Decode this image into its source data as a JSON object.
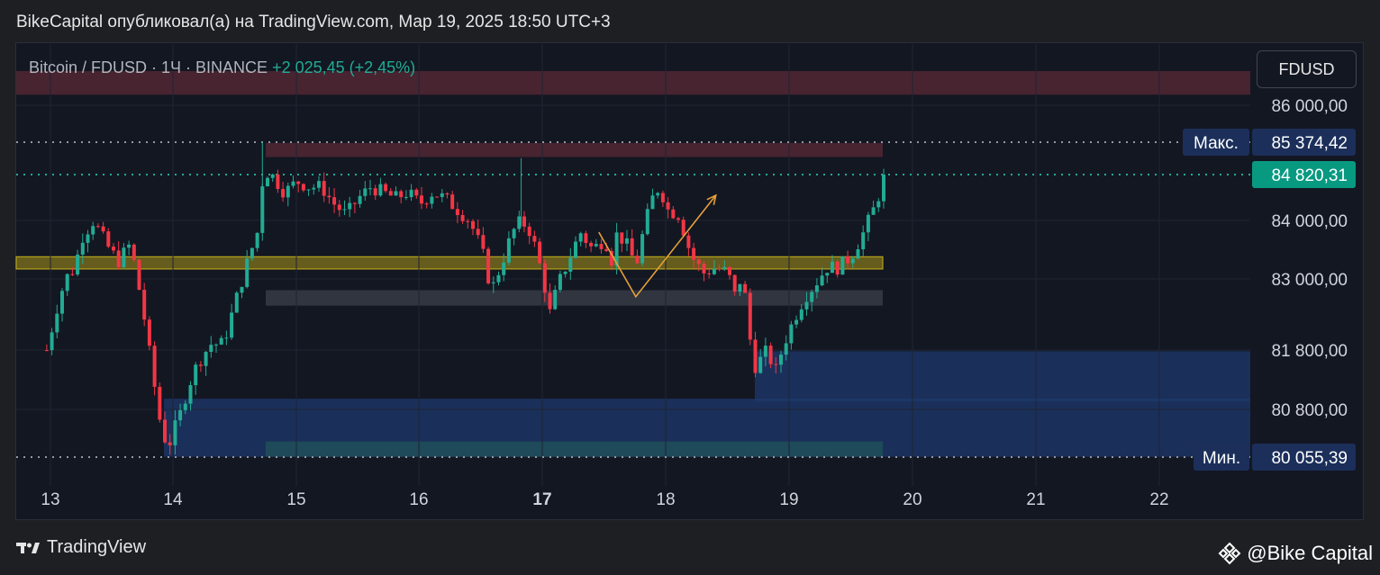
{
  "header": {
    "published": "BikeCapital опубликовал(а) на TradingView.com, Мар 19, 2025 18:50 UTC+3"
  },
  "legend": {
    "symbol": "Bitcoin / FDUSD · 1Ч · BINANCE",
    "change": "+2 025,45 (+2,45%)"
  },
  "currency_button": "FDUSD",
  "footer": {
    "brand": "TradingView",
    "author": "@Bike Capital",
    "brand_icon": "tradingview-logo-icon",
    "author_icon": "binance-logo-icon"
  },
  "colors": {
    "up": "#22ab94",
    "down": "#f23645",
    "resistance": "#5a2a35",
    "support_zone": "#1e3a6e",
    "level": "#c9b21a",
    "arrow": "#e6a13a"
  },
  "chart_data": {
    "type": "candlestick",
    "timeframe": "1Ч",
    "x_axis": {
      "tick_labels": [
        "13",
        "14",
        "15",
        "16",
        "17",
        "18",
        "19",
        "20",
        "21",
        "22"
      ]
    },
    "y_axis": {
      "tick_labels": [
        "86 000,00",
        "84 000,00",
        "83 000,00",
        "81 800,00",
        "80 800,00"
      ],
      "range": [
        79800,
        86700
      ]
    },
    "markers": [
      {
        "label": "Макс.",
        "value": "85 374,42"
      },
      {
        "label": "",
        "value": "84 820,31"
      },
      {
        "label": "Мин.",
        "value": "80 055,39"
      }
    ],
    "zones": [
      {
        "kind": "resistance",
        "from": 86180,
        "to": 86580
      },
      {
        "kind": "resistance",
        "from": 85120,
        "to": 85360
      },
      {
        "kind": "level",
        "from": 83170,
        "to": 83380
      },
      {
        "kind": "gray",
        "from": 82550,
        "to": 82810
      },
      {
        "kind": "support",
        "from": 80940,
        "to": 81780
      },
      {
        "kind": "support",
        "from": 80060,
        "to": 80980
      },
      {
        "kind": "teal",
        "from": 80060,
        "to": 80300
      }
    ],
    "pattern_arrow": [
      {
        "day": 17.45,
        "price": 83800
      },
      {
        "day": 17.75,
        "price": 82700
      },
      {
        "day": 18.4,
        "price": 84450
      }
    ],
    "close_path": [
      [
        12.97,
        81800
      ],
      [
        13.05,
        82500
      ],
      [
        13.12,
        83000
      ],
      [
        13.2,
        83200
      ],
      [
        13.25,
        83700
      ],
      [
        13.35,
        84000
      ],
      [
        13.45,
        83600
      ],
      [
        13.55,
        83300
      ],
      [
        13.65,
        83600
      ],
      [
        13.75,
        82500
      ],
      [
        13.8,
        81800
      ],
      [
        13.88,
        80700
      ],
      [
        13.95,
        80200
      ],
      [
        14.05,
        80700
      ],
      [
        14.12,
        81200
      ],
      [
        14.2,
        81600
      ],
      [
        14.3,
        81900
      ],
      [
        14.4,
        81900
      ],
      [
        14.5,
        82600
      ],
      [
        14.6,
        83300
      ],
      [
        14.68,
        83800
      ],
      [
        14.73,
        84900
      ],
      [
        14.8,
        84800
      ],
      [
        14.9,
        84500
      ],
      [
        15.0,
        84700
      ],
      [
        15.1,
        84600
      ],
      [
        15.2,
        84600
      ],
      [
        15.3,
        84300
      ],
      [
        15.4,
        84100
      ],
      [
        15.5,
        84400
      ],
      [
        15.6,
        84600
      ],
      [
        15.7,
        84500
      ],
      [
        15.8,
        84400
      ],
      [
        15.9,
        84500
      ],
      [
        16.0,
        84300
      ],
      [
        16.1,
        84500
      ],
      [
        16.2,
        84400
      ],
      [
        16.3,
        84200
      ],
      [
        16.4,
        84000
      ],
      [
        16.5,
        83500
      ],
      [
        16.58,
        82800
      ],
      [
        16.65,
        83200
      ],
      [
        16.75,
        83800
      ],
      [
        16.82,
        84000
      ],
      [
        16.9,
        83800
      ],
      [
        17.0,
        83000
      ],
      [
        17.05,
        82400
      ],
      [
        17.12,
        82900
      ],
      [
        17.2,
        83300
      ],
      [
        17.3,
        83800
      ],
      [
        17.4,
        83500
      ],
      [
        17.5,
        83700
      ],
      [
        17.55,
        83300
      ],
      [
        17.6,
        83800
      ],
      [
        17.7,
        83500
      ],
      [
        17.75,
        83200
      ],
      [
        17.82,
        83900
      ],
      [
        17.9,
        84500
      ],
      [
        17.95,
        84600
      ],
      [
        18.0,
        84200
      ],
      [
        18.1,
        84100
      ],
      [
        18.2,
        83400
      ],
      [
        18.3,
        83100
      ],
      [
        18.4,
        83200
      ],
      [
        18.5,
        83100
      ],
      [
        18.55,
        82700
      ],
      [
        18.6,
        83000
      ],
      [
        18.65,
        82600
      ],
      [
        18.7,
        81500
      ],
      [
        18.75,
        81600
      ],
      [
        18.82,
        81800
      ],
      [
        18.88,
        81400
      ],
      [
        18.95,
        81900
      ],
      [
        19.05,
        82400
      ],
      [
        19.12,
        82700
      ],
      [
        19.2,
        82900
      ],
      [
        19.3,
        83200
      ],
      [
        19.4,
        83200
      ],
      [
        19.5,
        83400
      ],
      [
        19.6,
        83800
      ],
      [
        19.68,
        84200
      ],
      [
        19.73,
        84500
      ],
      [
        19.76,
        84820
      ]
    ]
  }
}
